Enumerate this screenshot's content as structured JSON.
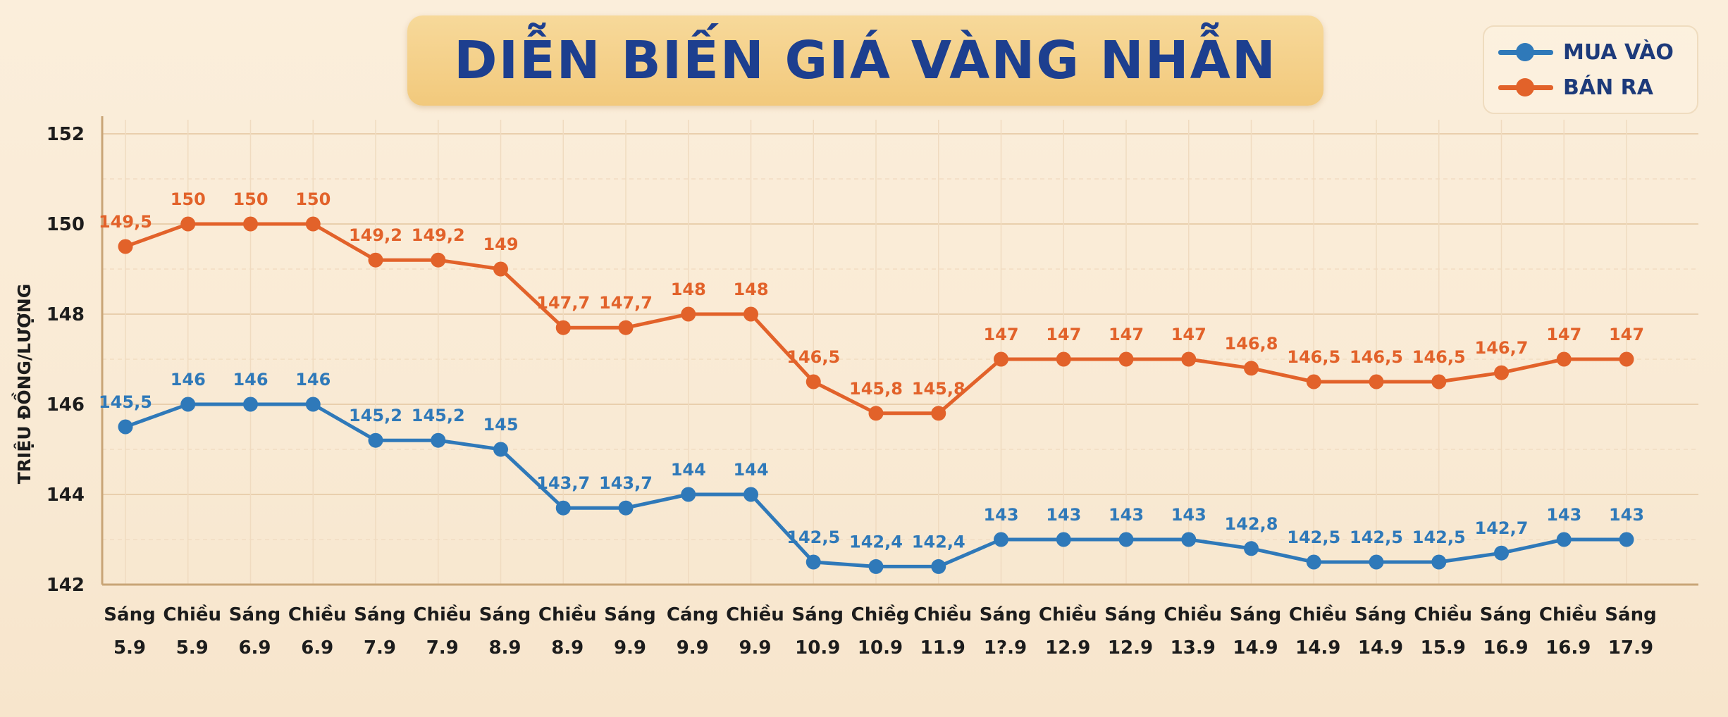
{
  "chart_data": {
    "type": "line",
    "title": "DIỄN BIẾN GIÁ VÀNG NHẪN",
    "ylabel": "TRIỆU ĐỒNG/LƯỢNG",
    "xlabel": "",
    "ylim": [
      142,
      152
    ],
    "yticks": [
      "142",
      "144",
      "146",
      "148",
      "150",
      "152"
    ],
    "grid": true,
    "legend_position": "top-right",
    "categories": [
      [
        "Sáng",
        "5.9"
      ],
      [
        "Chiều",
        "5.9"
      ],
      [
        "Sáng",
        "6.9"
      ],
      [
        "Chiều",
        "6.9"
      ],
      [
        "Sáng",
        "7.9"
      ],
      [
        "Chiều",
        "7.9"
      ],
      [
        "Sáng",
        "8.9"
      ],
      [
        "Chiều",
        "8.9"
      ],
      [
        "Sáng",
        "9.9"
      ],
      [
        "Cáng",
        "9.9"
      ],
      [
        "Chiều",
        "9.9"
      ],
      [
        "Sáng",
        "10.9"
      ],
      [
        "Chiềg",
        "10.9"
      ],
      [
        "Chiều",
        "11.9"
      ],
      [
        "Sáng",
        "1?.9"
      ],
      [
        "Chiều",
        "12.9"
      ],
      [
        "Sáng",
        "12.9"
      ],
      [
        "Chiều",
        "13.9"
      ],
      [
        "Sáng",
        "14.9"
      ],
      [
        "Chiều",
        "14.9"
      ],
      [
        "Sáng",
        "14.9"
      ],
      [
        "Chiều",
        "15.9"
      ],
      [
        "Sáng",
        "16.9"
      ],
      [
        "Chiều",
        "16.9"
      ],
      [
        "Sáng",
        "17.9"
      ]
    ],
    "series": [
      {
        "name": "MUA VÀO",
        "color": "#2f79b9",
        "values": [
          145.5,
          146,
          146,
          146,
          145.2,
          145.2,
          145,
          143.7,
          143.7,
          144,
          144,
          142.5,
          142.4,
          142.4,
          143,
          143,
          143,
          143,
          142.8,
          142.5,
          142.5,
          142.5,
          142.7,
          143,
          143
        ],
        "labels": [
          "145,5",
          "146",
          "146",
          "146",
          "145,2",
          "145,2",
          "145",
          "143,7",
          "143,7",
          "144",
          "144",
          "142,5",
          "142,4",
          "142,4",
          "143",
          "143",
          "143",
          "143",
          "142,8",
          "142,5",
          "142,5",
          "142,5",
          "142,7",
          "143",
          "143"
        ]
      },
      {
        "name": "BÁN RA",
        "color": "#e2622a",
        "values": [
          149.5,
          150,
          150,
          150,
          149.2,
          149.2,
          149,
          147.7,
          147.7,
          148,
          148,
          146.5,
          145.8,
          145.8,
          147,
          147,
          147,
          147,
          146.8,
          146.5,
          146.5,
          146.5,
          146.7,
          147,
          147
        ],
        "labels": [
          "149,5",
          "150",
          "150",
          "150",
          "149,2",
          "149,2",
          "149",
          "147,7",
          "147,7",
          "148",
          "148",
          "146,5",
          "145,8",
          "145,8",
          "147",
          "147",
          "147",
          "147",
          "146,8",
          "146,5",
          "146,5",
          "146,5",
          "146,7",
          "147",
          "147"
        ]
      }
    ]
  },
  "legend": {
    "items": [
      {
        "label": "MUA VÀO",
        "color": "#2f79b9"
      },
      {
        "label": "BÁN RA",
        "color": "#e2622a"
      }
    ]
  }
}
